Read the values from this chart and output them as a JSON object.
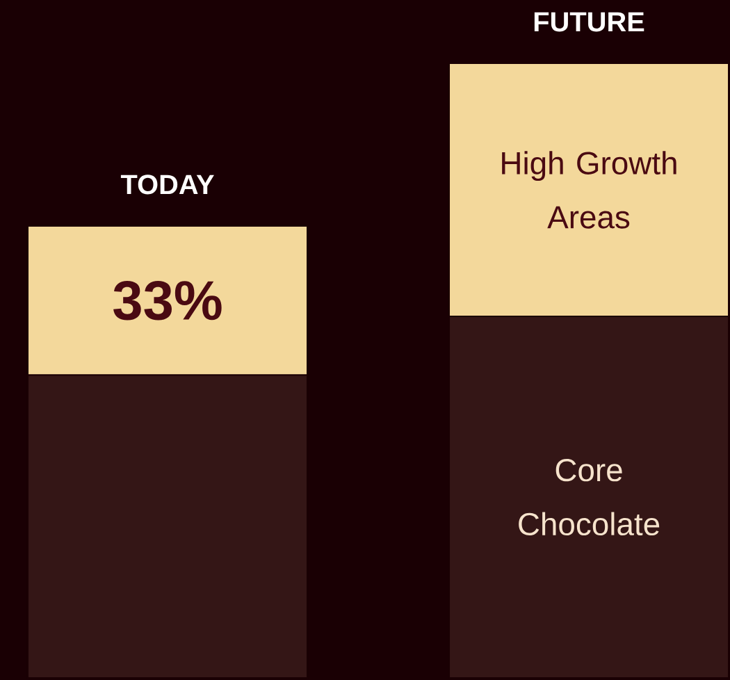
{
  "chart_data": {
    "type": "bar",
    "stacked": true,
    "tick_labels": "x",
    "categories": [
      "TODAY",
      "FUTURE"
    ],
    "series": [
      {
        "name": "Core Chocolate",
        "color": "#341616",
        "values": [
          67,
          80
        ]
      },
      {
        "name": "High Growth Areas",
        "color": "#f3d89b",
        "values": [
          33,
          56
        ],
        "value_labels": [
          "33%",
          null
        ]
      }
    ]
  }
}
